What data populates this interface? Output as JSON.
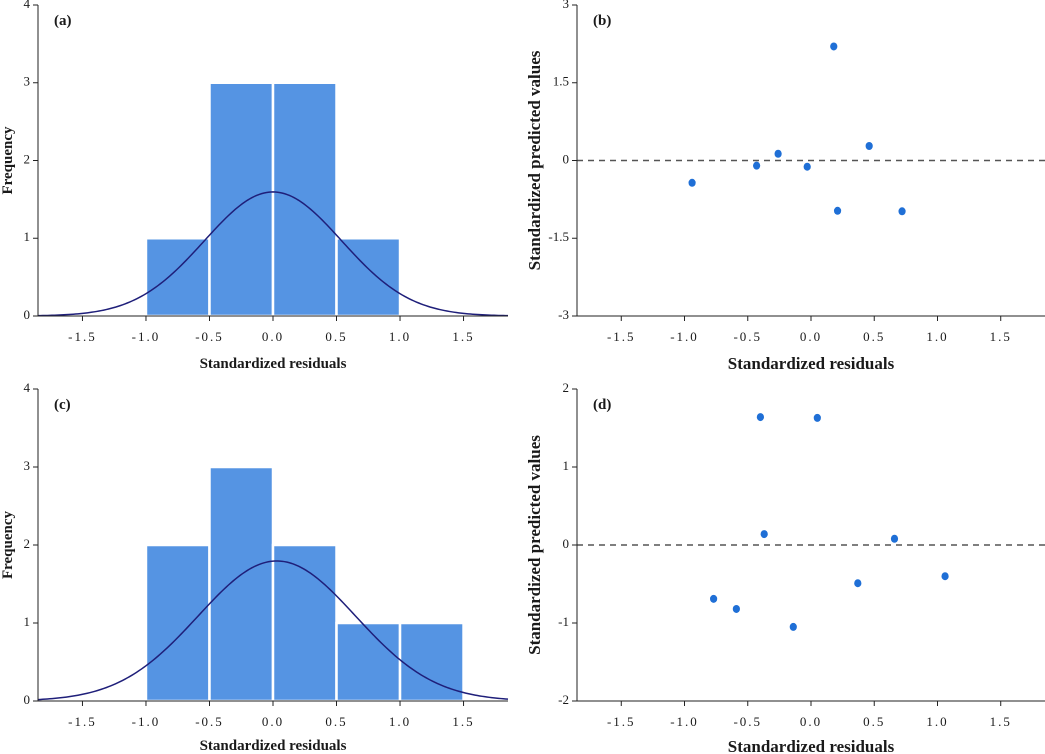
{
  "chart_data": [
    {
      "id": "a",
      "type": "bar",
      "subtype": "histogram",
      "panel_label": "(a)",
      "xlabel": "Standardized residuals",
      "ylabel": "Frequency",
      "xlim": [
        -1.85,
        1.85
      ],
      "ylim": [
        0,
        4
      ],
      "xticks": [
        -1.5,
        -1.0,
        -0.5,
        0.0,
        0.5,
        1.0,
        1.5
      ],
      "xtick_labels": [
        "-1.5",
        "-1.0",
        "-0.5",
        "0.0",
        "0.5",
        "1.0",
        "1.5"
      ],
      "yticks": [
        0,
        1,
        2,
        3,
        4
      ],
      "ytick_labels": [
        "0",
        "1",
        "2",
        "3",
        "4"
      ],
      "bins": [
        {
          "x0": -1.0,
          "x1": -0.5,
          "count": 1
        },
        {
          "x0": -0.5,
          "x1": 0.0,
          "count": 3
        },
        {
          "x0": 0.0,
          "x1": 0.5,
          "count": 3
        },
        {
          "x0": 0.5,
          "x1": 1.0,
          "count": 1
        }
      ],
      "normal_curve": {
        "mean": 0.0,
        "sd": 0.54,
        "scale": 4.0
      }
    },
    {
      "id": "b",
      "type": "scatter",
      "panel_label": "(b)",
      "xlabel": "Standardized residuals",
      "ylabel": "Standardized predicted values",
      "xlim": [
        -1.85,
        1.85
      ],
      "ylim": [
        -3,
        3
      ],
      "xticks": [
        -1.5,
        -1.0,
        -0.5,
        0.0,
        0.5,
        1.0,
        1.5
      ],
      "xtick_labels": [
        "-1.5",
        "-1.0",
        "-0.5",
        "0.0",
        "0.5",
        "1.0",
        "1.5"
      ],
      "yticks": [
        -3,
        -1.5,
        0,
        1.5,
        3
      ],
      "ytick_labels": [
        "-3",
        "-1.5",
        "0",
        "1.5",
        "3"
      ],
      "reference_line": 0,
      "points": [
        {
          "x": -0.94,
          "y": -0.43
        },
        {
          "x": -0.43,
          "y": -0.1
        },
        {
          "x": -0.26,
          "y": 0.13
        },
        {
          "x": -0.03,
          "y": -0.12
        },
        {
          "x": 0.18,
          "y": 2.2
        },
        {
          "x": 0.21,
          "y": -0.97
        },
        {
          "x": 0.46,
          "y": 0.28
        },
        {
          "x": 0.72,
          "y": -0.98
        }
      ]
    },
    {
      "id": "c",
      "type": "bar",
      "subtype": "histogram",
      "panel_label": "(c)",
      "xlabel": "Standardized residuals",
      "ylabel": "Frequency",
      "xlim": [
        -1.85,
        1.85
      ],
      "ylim": [
        0,
        4
      ],
      "xticks": [
        -1.5,
        -1.0,
        -0.5,
        0.0,
        0.5,
        1.0,
        1.5
      ],
      "xtick_labels": [
        "-1.5",
        "-1.0",
        "-0.5",
        "0.0",
        "0.5",
        "1.0",
        "1.5"
      ],
      "yticks": [
        0,
        1,
        2,
        3,
        4
      ],
      "ytick_labels": [
        "0",
        "1",
        "2",
        "3",
        "4"
      ],
      "bins": [
        {
          "x0": -1.0,
          "x1": -0.5,
          "count": 2
        },
        {
          "x0": -0.5,
          "x1": 0.0,
          "count": 3
        },
        {
          "x0": 0.0,
          "x1": 0.5,
          "count": 2
        },
        {
          "x0": 0.5,
          "x1": 1.0,
          "count": 1
        },
        {
          "x0": 1.0,
          "x1": 1.5,
          "count": 1
        }
      ],
      "normal_curve": {
        "mean": 0.03,
        "sd": 0.62,
        "scale": 4.5
      }
    },
    {
      "id": "d",
      "type": "scatter",
      "panel_label": "(d)",
      "xlabel": "Standardized residuals",
      "ylabel": "Standardized predicted values",
      "xlim": [
        -1.85,
        1.85
      ],
      "ylim": [
        -2,
        2
      ],
      "xticks": [
        -1.5,
        -1.0,
        -0.5,
        0.0,
        0.5,
        1.0,
        1.5
      ],
      "xtick_labels": [
        "-1.5",
        "-1.0",
        "-0.5",
        "0.0",
        "0.5",
        "1.0",
        "1.5"
      ],
      "yticks": [
        -2,
        -1,
        0,
        1,
        2
      ],
      "ytick_labels": [
        "-2",
        "-1",
        "0",
        "1",
        "2"
      ],
      "reference_line": 0,
      "points": [
        {
          "x": -0.77,
          "y": -0.69
        },
        {
          "x": -0.59,
          "y": -0.82
        },
        {
          "x": -0.4,
          "y": 1.64
        },
        {
          "x": -0.37,
          "y": 0.14
        },
        {
          "x": -0.14,
          "y": -1.05
        },
        {
          "x": 0.05,
          "y": 1.63
        },
        {
          "x": 0.37,
          "y": -0.49
        },
        {
          "x": 0.66,
          "y": 0.08
        },
        {
          "x": 1.06,
          "y": -0.4
        }
      ]
    }
  ]
}
